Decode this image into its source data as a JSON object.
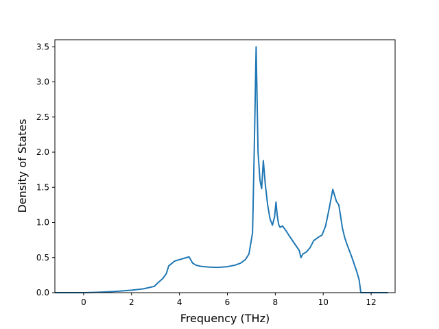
{
  "chart_data": {
    "type": "line",
    "title": "",
    "xlabel": "Frequency (THz)",
    "ylabel": "Density of States",
    "xlim": [
      -1.2,
      13.0
    ],
    "ylim": [
      0.0,
      3.6
    ],
    "xticks": [
      0,
      2,
      4,
      6,
      8,
      10,
      12
    ],
    "yticks": [
      0.0,
      0.5,
      1.0,
      1.5,
      2.0,
      2.5,
      3.0,
      3.5
    ],
    "grid": false,
    "legend": "none",
    "line_color": "#1f77b4",
    "series": [
      {
        "x": [
          -1.2,
          -0.5,
          0.0,
          0.5,
          1.0,
          1.5,
          2.0,
          2.5,
          2.95,
          3.1,
          3.3,
          3.45,
          3.55,
          3.8,
          4.0,
          4.2,
          4.4,
          4.55,
          4.7,
          4.9,
          5.2,
          5.6,
          6.0,
          6.3,
          6.55,
          6.75,
          6.9,
          7.05,
          7.12,
          7.2,
          7.28,
          7.36,
          7.43,
          7.5,
          7.58,
          7.68,
          7.78,
          7.88,
          7.97,
          8.03,
          8.08,
          8.14,
          8.2,
          8.3,
          8.45,
          8.6,
          8.8,
          9.0,
          9.07,
          9.15,
          9.3,
          9.45,
          9.6,
          9.8,
          9.95,
          10.1,
          10.25,
          10.4,
          10.55,
          10.65,
          10.72,
          10.8,
          10.9,
          11.0,
          11.2,
          11.4,
          11.5,
          11.57,
          11.7,
          12.0,
          12.7
        ],
        "y": [
          0.0,
          0.0,
          0.0,
          0.005,
          0.012,
          0.022,
          0.035,
          0.055,
          0.09,
          0.14,
          0.2,
          0.27,
          0.38,
          0.45,
          0.47,
          0.49,
          0.51,
          0.42,
          0.39,
          0.375,
          0.365,
          0.36,
          0.37,
          0.39,
          0.42,
          0.47,
          0.55,
          0.85,
          2.0,
          3.5,
          2.0,
          1.6,
          1.48,
          1.88,
          1.55,
          1.25,
          1.05,
          0.96,
          1.08,
          1.29,
          1.1,
          0.97,
          0.93,
          0.95,
          0.88,
          0.8,
          0.7,
          0.6,
          0.5,
          0.55,
          0.58,
          0.64,
          0.74,
          0.79,
          0.82,
          0.95,
          1.2,
          1.47,
          1.3,
          1.25,
          1.1,
          0.92,
          0.78,
          0.68,
          0.5,
          0.3,
          0.18,
          0.0,
          0.0,
          0.0,
          0.0
        ]
      }
    ]
  }
}
